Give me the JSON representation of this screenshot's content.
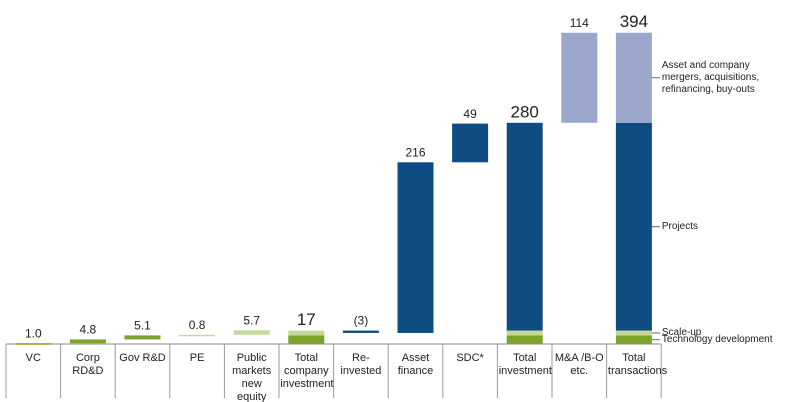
{
  "chart_data": {
    "type": "waterfall",
    "categories": [
      "VC",
      "Corp RD&D",
      "Gov R&D",
      "PE",
      "Public markets new equity",
      "Total company investment",
      "Re-invested",
      "Asset finance",
      "SDC*",
      "Total investment",
      "M&A /B-O etc.",
      "Total transactions"
    ],
    "values": [
      1.0,
      4.8,
      5.1,
      0.8,
      5.7,
      17,
      -3,
      216,
      49,
      280,
      114,
      394
    ],
    "value_labels": [
      "1.0",
      "4.8",
      "5.1",
      "0.8",
      "5.7",
      "17",
      "(3)",
      "216",
      "49",
      "280",
      "114",
      "394"
    ],
    "measure": [
      "relative",
      "relative",
      "relative",
      "relative",
      "relative",
      "total",
      "relative",
      "relative",
      "relative",
      "total",
      "relative",
      "total"
    ],
    "colors": [
      "#7ba428",
      "#7ba428",
      "#7ba428",
      "#c5d89a",
      "#c5d89a",
      null,
      "#0f4c81",
      "#0f4c81",
      "#0f4c81",
      null,
      "#9ba6cc",
      null
    ],
    "series": [
      {
        "name": "Technology development",
        "color": "#7ba428",
        "values": [
          null,
          null,
          null,
          null,
          null,
          10.9,
          null,
          null,
          null,
          10.9,
          null,
          10.9
        ]
      },
      {
        "name": "Scale-up",
        "color": "#c5d89a",
        "values": [
          null,
          null,
          null,
          null,
          null,
          6.1,
          null,
          null,
          null,
          6.1,
          null,
          6.1
        ]
      },
      {
        "name": "Projects",
        "color": "#0f4c81",
        "values": [
          null,
          null,
          null,
          null,
          null,
          null,
          null,
          null,
          null,
          263,
          null,
          263
        ]
      },
      {
        "name": "Asset and company mergers, acquisitions, refinancing, buy-outs",
        "color": "#9ba6cc",
        "values": [
          null,
          null,
          null,
          null,
          null,
          null,
          null,
          null,
          null,
          null,
          null,
          114
        ]
      }
    ],
    "ylim": [
      0,
      400
    ]
  }
}
